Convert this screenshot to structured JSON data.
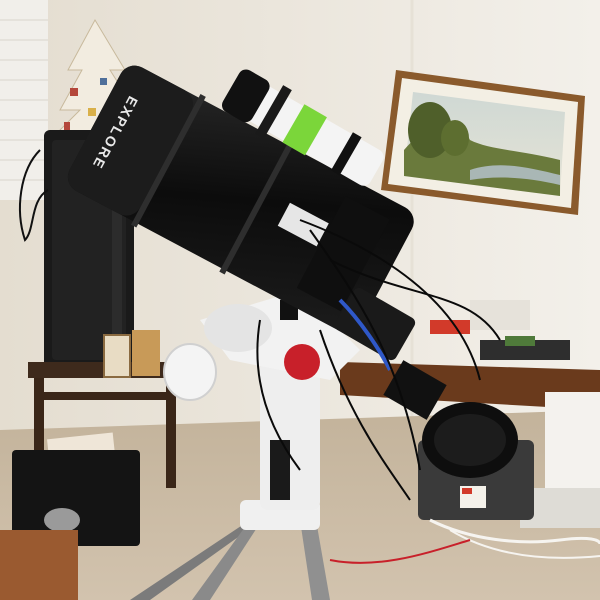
{
  "photo": {
    "telescope_brand_text": "EXPLORE"
  },
  "colors": {
    "wall": "#ebe6dc",
    "wall_right": "#f2efe8",
    "floor": "#c9b9a2",
    "frame": "#8a5a2c",
    "telescope_body": "#111111",
    "mount": "#eeeeee",
    "red_knob": "#c8202a",
    "green_band": "#7bd63a",
    "furniture": "#3e2a1c"
  }
}
